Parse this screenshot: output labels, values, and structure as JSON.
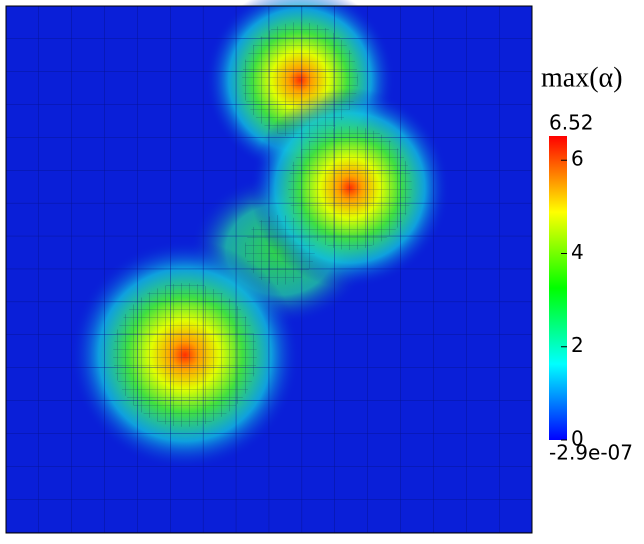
{
  "chart_data": {
    "type": "heatmap",
    "title": "max(α)",
    "clim": [
      {
        "value": -2.9e-07,
        "label": "-2.9e-07"
      },
      6.52
    ],
    "cticks": [
      0,
      2,
      4,
      6
    ],
    "colormap": [
      "#0000ff",
      "#00ffff",
      "#00ff00",
      "#ffff00",
      "#ff0000"
    ]
  }
}
